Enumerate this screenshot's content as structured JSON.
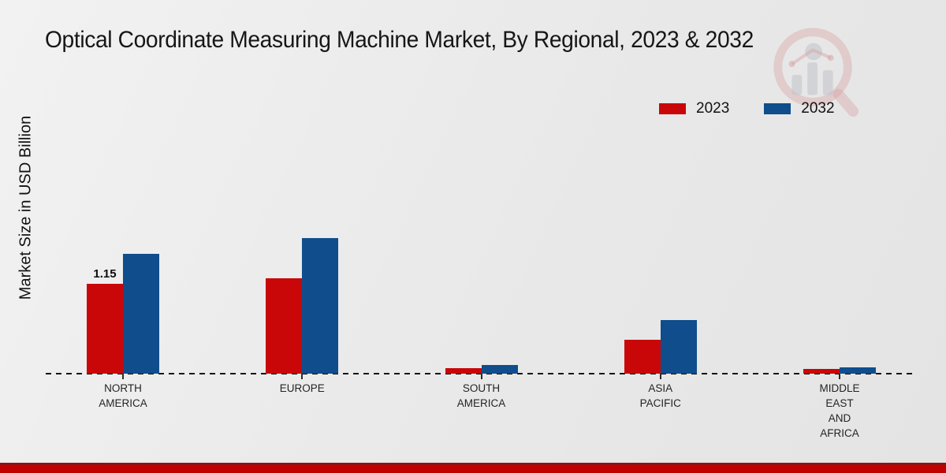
{
  "chart_data": {
    "type": "bar",
    "title": "Optical Coordinate Measuring Machine Market, By Regional, 2023 & 2032",
    "xlabel": "",
    "ylabel": "Market Size in USD Billion",
    "categories": [
      "NORTH\nAMERICA",
      "EUROPE",
      "SOUTH\nAMERICA",
      "ASIA\nPACIFIC",
      "MIDDLE\nEAST\nAND\nAFRICA"
    ],
    "series": [
      {
        "name": "2023",
        "color": "#c90708",
        "values": [
          1.15,
          1.22,
          0.07,
          0.43,
          0.06
        ]
      },
      {
        "name": "2032",
        "color": "#0f4d8c",
        "values": [
          1.53,
          1.74,
          0.11,
          0.69,
          0.08
        ]
      }
    ],
    "annotations": [
      {
        "series_index": 0,
        "category_index": 0,
        "text": "1.15"
      }
    ],
    "ylim": [
      0,
      2.0
    ],
    "grid": false,
    "legend_position": "top-right",
    "baseline_style": "dashed"
  },
  "theme": {
    "background": "#ebebeb",
    "series_2023_red": "#c90708",
    "series_2032_blue": "#0f4d8c",
    "footer_bar_red": "#c00000",
    "footer_bar_dark_red": "#9a0e10",
    "text_dark": "#161616"
  },
  "watermark": {
    "name": "market-research-future-logo"
  }
}
